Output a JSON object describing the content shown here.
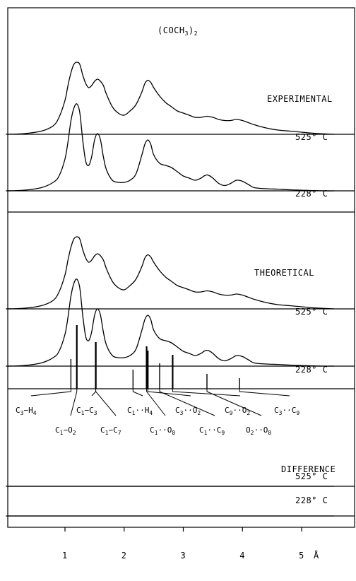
{
  "chart_data": {
    "type": "line",
    "title": "(COCH3)2",
    "x_axis": {
      "unit": "Å",
      "range": [
        0.0,
        5.55
      ],
      "ticks": [
        {
          "value": 1,
          "label": "1"
        },
        {
          "value": 2,
          "label": "2"
        },
        {
          "value": 3,
          "label": "3"
        },
        {
          "value": 4,
          "label": "4"
        },
        {
          "value": 5,
          "label": "5"
        }
      ]
    },
    "sections": [
      {
        "label": "EXPERIMENTAL"
      },
      {
        "label": "THEORETICAL"
      },
      {
        "label": "DIFFERENCE"
      }
    ],
    "series": [
      {
        "section": "EXPERIMENTAL",
        "temperature": "525° C",
        "x": [
          0.0,
          0.3,
          0.6,
          0.8,
          0.9,
          1.0,
          1.05,
          1.1,
          1.15,
          1.2,
          1.25,
          1.3,
          1.35,
          1.4,
          1.45,
          1.5,
          1.55,
          1.6,
          1.65,
          1.7,
          1.8,
          1.9,
          2.0,
          2.1,
          2.2,
          2.3,
          2.35,
          2.4,
          2.45,
          2.5,
          2.6,
          2.7,
          2.8,
          2.9,
          3.0,
          3.1,
          3.2,
          3.3,
          3.4,
          3.5,
          3.6,
          3.7,
          3.8,
          3.9,
          4.0,
          4.1,
          4.2,
          4.4,
          4.6,
          4.8,
          5.0,
          5.2,
          5.4,
          5.55
        ],
        "y": [
          0,
          0.3,
          1.5,
          4,
          8,
          16,
          23,
          29,
          33,
          34,
          33,
          28,
          24,
          22,
          23,
          25,
          26,
          25,
          23,
          19,
          13,
          10,
          9,
          11,
          14,
          20,
          24,
          25.5,
          24.5,
          22,
          18,
          15,
          13,
          11,
          10,
          9,
          8,
          8,
          8.5,
          8,
          7,
          6.5,
          6.5,
          7,
          6.5,
          5.5,
          4.5,
          3,
          2,
          1.5,
          1,
          0.5,
          0.2,
          0
        ]
      },
      {
        "section": "EXPERIMENTAL",
        "temperature": "228° C",
        "x": [
          0.0,
          0.3,
          0.6,
          0.8,
          0.9,
          1.0,
          1.05,
          1.1,
          1.15,
          1.2,
          1.25,
          1.3,
          1.35,
          1.4,
          1.45,
          1.5,
          1.55,
          1.6,
          1.65,
          1.7,
          1.8,
          1.9,
          2.0,
          2.1,
          2.2,
          2.3,
          2.35,
          2.4,
          2.45,
          2.5,
          2.6,
          2.7,
          2.8,
          2.9,
          3.0,
          3.1,
          3.2,
          3.3,
          3.35,
          3.4,
          3.45,
          3.5,
          3.6,
          3.7,
          3.8,
          3.9,
          4.0,
          4.1,
          4.2,
          4.4,
          4.6,
          4.8,
          5.0,
          5.2,
          5.4,
          5.55
        ],
        "y": [
          0,
          0.3,
          1.5,
          4,
          7,
          15,
          23,
          33,
          39,
          41,
          37,
          24,
          14,
          12,
          16,
          24,
          27,
          24,
          16,
          10,
          5,
          4,
          4,
          5,
          8,
          17,
          22,
          24,
          22,
          17,
          13,
          12,
          11,
          9,
          7,
          6,
          5,
          6,
          7,
          7.5,
          7,
          6,
          3.5,
          2.5,
          3.5,
          5,
          4.5,
          3,
          1.5,
          1,
          0.8,
          0.5,
          0.3,
          0.1,
          0,
          0
        ]
      },
      {
        "section": "THEORETICAL",
        "temperature": "525° C",
        "x": [
          0.0,
          0.3,
          0.6,
          0.8,
          0.9,
          1.0,
          1.05,
          1.1,
          1.15,
          1.2,
          1.25,
          1.3,
          1.35,
          1.4,
          1.45,
          1.5,
          1.55,
          1.6,
          1.65,
          1.7,
          1.8,
          1.9,
          2.0,
          2.1,
          2.2,
          2.3,
          2.35,
          2.4,
          2.45,
          2.5,
          2.6,
          2.7,
          2.8,
          2.9,
          3.0,
          3.1,
          3.2,
          3.3,
          3.4,
          3.5,
          3.6,
          3.7,
          3.8,
          3.9,
          4.0,
          4.1,
          4.2,
          4.4,
          4.6,
          4.8,
          5.0,
          5.2,
          5.4,
          5.55
        ],
        "y": [
          0,
          0.3,
          1.5,
          4,
          8,
          16,
          23,
          29,
          33,
          34,
          33,
          28,
          24,
          22,
          23,
          25,
          26,
          25,
          23,
          19,
          13,
          10,
          9,
          11,
          14,
          20,
          24,
          25.5,
          24.5,
          22,
          18,
          15,
          13,
          11,
          10,
          9,
          8,
          8,
          8.5,
          8,
          7,
          6.5,
          6.5,
          7,
          6.5,
          5.5,
          4.5,
          3,
          2,
          1.5,
          1,
          0.5,
          0.2,
          0
        ]
      },
      {
        "section": "THEORETICAL",
        "temperature": "228° C",
        "x": [
          0.0,
          0.3,
          0.6,
          0.8,
          0.9,
          1.0,
          1.05,
          1.1,
          1.15,
          1.2,
          1.25,
          1.3,
          1.35,
          1.4,
          1.45,
          1.5,
          1.55,
          1.6,
          1.65,
          1.7,
          1.8,
          1.9,
          2.0,
          2.1,
          2.2,
          2.3,
          2.35,
          2.4,
          2.45,
          2.5,
          2.6,
          2.7,
          2.8,
          2.9,
          3.0,
          3.1,
          3.2,
          3.3,
          3.35,
          3.4,
          3.45,
          3.5,
          3.6,
          3.7,
          3.8,
          3.9,
          4.0,
          4.1,
          4.2,
          4.4,
          4.6,
          4.8,
          5.0,
          5.2,
          5.4,
          5.55
        ],
        "y": [
          0,
          0.3,
          1.5,
          4,
          7,
          15,
          23,
          33,
          39,
          41,
          37,
          24,
          14,
          12,
          16,
          24,
          27,
          24,
          16,
          10,
          5,
          4,
          4,
          5,
          8,
          17,
          22,
          24,
          22,
          17,
          13,
          12,
          11,
          9,
          7,
          6,
          5,
          6,
          7,
          7.5,
          7,
          6,
          3.5,
          2.5,
          3.5,
          5,
          4.5,
          3,
          1.5,
          1,
          0.8,
          0.5,
          0.3,
          0.1,
          0,
          0
        ]
      },
      {
        "section": "DIFFERENCE",
        "temperature": "525° C",
        "x": [
          0.0,
          5.55
        ],
        "y": [
          0,
          0
        ]
      },
      {
        "section": "DIFFERENCE",
        "temperature": "228° C",
        "x": [
          0.0,
          5.55
        ],
        "y": [
          0,
          0
        ]
      }
    ],
    "distance_assignments": [
      {
        "label_main": "C",
        "sub1": "3",
        "sep": "−H",
        "sub2": "4",
        "row": 1,
        "sticks": [
          {
            "x": 1.1,
            "h": 14
          }
        ]
      },
      {
        "label_main": "C",
        "sub1": "1",
        "sep": "−O",
        "sub2": "2",
        "row": 2,
        "sticks": [
          {
            "x": 1.2,
            "h": 30
          }
        ]
      },
      {
        "label_main": "C",
        "sub1": "1",
        "sep": "−C",
        "sub2": "3",
        "row": 1,
        "sticks": [
          {
            "x": 1.52,
            "h": 22
          }
        ]
      },
      {
        "label_main": "C",
        "sub1": "1",
        "sep": "−C",
        "sub2": "7",
        "row": 2,
        "sticks": [
          {
            "x": 1.52,
            "h": 22
          }
        ]
      },
      {
        "label_main": "C",
        "sub1": "1",
        "sep": "··H",
        "sub2": "4",
        "row": 1,
        "sticks": [
          {
            "x": 2.15,
            "h": 9
          }
        ]
      },
      {
        "label_main": "C",
        "sub1": "1",
        "sep": "··O",
        "sub2": "8",
        "row": 2,
        "sticks": [
          {
            "x": 2.38,
            "h": 20
          }
        ]
      },
      {
        "label_main": "C",
        "sub1": "3",
        "sep": "··O",
        "sub2": "2",
        "row": 1,
        "sticks": [
          {
            "x": 2.4,
            "h": 18
          }
        ]
      },
      {
        "label_main": "C",
        "sub1": "1",
        "sep": "··C",
        "sub2": "9",
        "row": 2,
        "sticks": [
          {
            "x": 2.6,
            "h": 12
          }
        ]
      },
      {
        "label_main": "C",
        "sub1": "9",
        "sep": "··O",
        "sub2": "2",
        "row": 1,
        "sticks": [
          {
            "x": 2.82,
            "h": 16
          }
        ]
      },
      {
        "label_main": "O",
        "sub1": "2",
        "sep": "··O",
        "sub2": "8",
        "row": 2,
        "sticks": [
          {
            "x": 3.4,
            "h": 7
          }
        ]
      },
      {
        "label_main": "C",
        "sub1": "3",
        "sep": "··C",
        "sub2": "9",
        "row": 1,
        "sticks": [
          {
            "x": 3.95,
            "h": 5
          }
        ]
      }
    ],
    "grid": false,
    "legend": "none"
  }
}
